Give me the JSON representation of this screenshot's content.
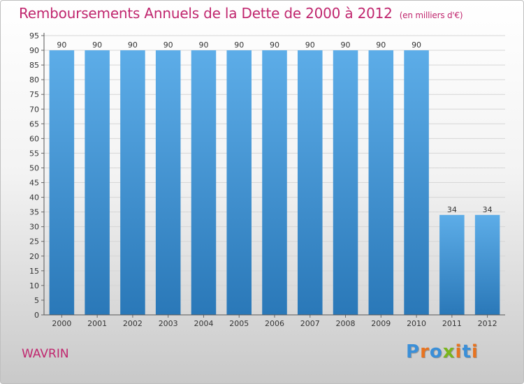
{
  "header": {
    "title": "Remboursements Annuels de la Dette de 2000 à 2012",
    "unit": "(en milliers d'€)"
  },
  "footer": {
    "city": "WAVRIN",
    "logo": {
      "letters": [
        "P",
        "r",
        "o",
        "x",
        "i",
        "t",
        "i"
      ],
      "colors": [
        "#3a8fd8",
        "#e8731f",
        "#3a8fd8",
        "#7ab51d",
        "#e8731f",
        "#3a8fd8",
        "#e8731f"
      ]
    }
  },
  "chart_data": {
    "type": "bar",
    "title": "Remboursements Annuels de la Dette de 2000 à 2012",
    "categories": [
      "2000",
      "2001",
      "2002",
      "2003",
      "2004",
      "2005",
      "2006",
      "2007",
      "2008",
      "2009",
      "2010",
      "2011",
      "2012"
    ],
    "values": [
      90,
      90,
      90,
      90,
      90,
      90,
      90,
      90,
      90,
      90,
      90,
      34,
      34
    ],
    "ylim": [
      0,
      95
    ],
    "yticks": [
      0,
      5,
      10,
      15,
      20,
      25,
      30,
      35,
      40,
      45,
      50,
      55,
      60,
      65,
      70,
      75,
      80,
      85,
      90,
      95
    ],
    "grid": true,
    "colors": {
      "bar_top": "#5dade8",
      "bar_bottom": "#2a78b8",
      "grid": "#d6d6d6",
      "text": "#333333"
    }
  }
}
